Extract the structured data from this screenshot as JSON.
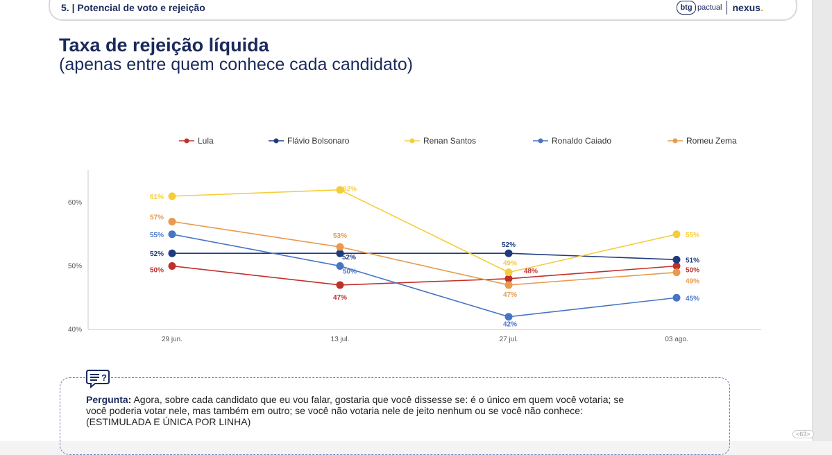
{
  "header": {
    "section": "5. | Potencial de voto e rejeição",
    "logo_btg_mark": "btg",
    "logo_btg_word": "pactual",
    "logo_nexus": "nexus",
    "logo_nexus_dot": "."
  },
  "title": "Taxa de rejeição líquida",
  "subtitle": "(apenas entre quem conhece cada candidato)",
  "question": {
    "label": "Pergunta:",
    "text": "Agora, sobre cada candidato que eu vou falar, gostaria que você dissesse se: é o único em quem você votaria; se você poderia votar nele, mas também em outro; se você não votaria nele de jeito nenhum ou se você não conhece:",
    "note": "(ESTIMULADA E ÚNICA POR LINHA)"
  },
  "page_number": "<63>",
  "chart_data": {
    "type": "line",
    "categories": [
      "29 jun.",
      "13 jul.",
      "27 jul.",
      "03 ago."
    ],
    "yticks": [
      "40%",
      "50%",
      "60%"
    ],
    "ylim": [
      40,
      63.5
    ],
    "grid": false,
    "legend_position": "top",
    "series": [
      {
        "name": "Lula",
        "color": "#c0302b",
        "values": [
          50,
          47,
          48,
          50
        ],
        "labels": [
          "50%",
          "47%",
          "48%",
          "50%"
        ]
      },
      {
        "name": "Flávio Bolsonaro",
        "color": "#1f3b7f",
        "values": [
          52,
          52,
          52,
          51
        ],
        "labels": [
          "52%",
          "52%",
          "52%",
          "51%"
        ]
      },
      {
        "name": "Renan Santos",
        "color": "#f5cd3c",
        "values": [
          61,
          62,
          49,
          55
        ],
        "labels": [
          "61%",
          "62%",
          "49%",
          "55%"
        ]
      },
      {
        "name": "Ronaldo Caiado",
        "color": "#4874c4",
        "values": [
          55,
          50,
          42,
          45
        ],
        "labels": [
          "55%",
          "50%",
          "42%",
          "45%"
        ]
      },
      {
        "name": "Romeu Zema",
        "color": "#e89a4e",
        "values": [
          57,
          53,
          47,
          49
        ],
        "labels": [
          "57%",
          "53%",
          "47%",
          "49%"
        ]
      }
    ]
  }
}
